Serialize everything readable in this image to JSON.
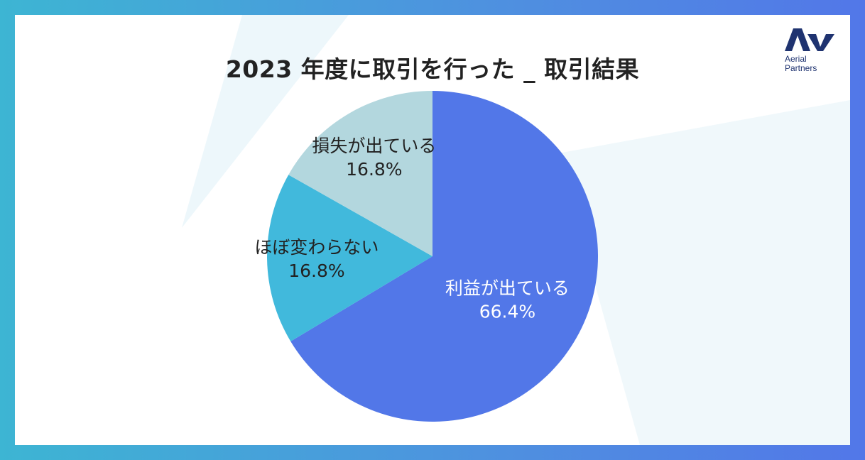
{
  "colors": {
    "frame_left": "#3db5d3",
    "frame_right": "#5277e8",
    "profit": "#5277e8",
    "unchanged": "#41b9dc",
    "loss": "#b3d7de",
    "logo": "#1f3370"
  },
  "logo": {
    "line1": "Aerial",
    "line2": "Partners"
  },
  "chart_data": {
    "type": "pie",
    "title": "2023 年度に取引を行った _ 取引結果",
    "series": [
      {
        "label": "利益が出ている",
        "value": 66.4,
        "value_label": "66.4%",
        "color": "#5277e8",
        "label_color": "#ffffff"
      },
      {
        "label": "ほぼ変わらない",
        "value": 16.8,
        "value_label": "16.8%",
        "color": "#41b9dc",
        "label_color": "#222222"
      },
      {
        "label": "損失が出ている",
        "value": 16.8,
        "value_label": "16.8%",
        "color": "#b3d7de",
        "label_color": "#222222"
      }
    ],
    "start_angle": "12 o'clock",
    "direction": "clockwise",
    "legend": "none"
  }
}
